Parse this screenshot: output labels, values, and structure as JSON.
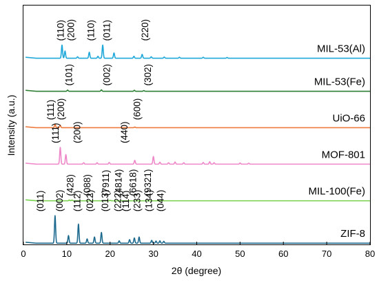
{
  "chart_data": {
    "type": "line",
    "title": "",
    "xlabel": "2θ (degree)",
    "ylabel": "Intensity (a.u.)",
    "xlim": [
      0,
      80
    ],
    "xticks": [
      0,
      10,
      20,
      30,
      40,
      50,
      60,
      70,
      80
    ],
    "y_tick_labels": "none",
    "grid": false,
    "legend": "none (series labelled directly at right of each trace)",
    "series": [
      {
        "name": "MIL-53(Al)",
        "color": "#1ea7d9",
        "baseline": 0.78,
        "peaks": [
          {
            "x": 8.9,
            "h": 0.055
          },
          {
            "x": 9.6,
            "h": 0.03
          },
          {
            "x": 12.5,
            "h": 0.006
          },
          {
            "x": 15.2,
            "h": 0.025
          },
          {
            "x": 17.2,
            "h": 0.008
          },
          {
            "x": 18.3,
            "h": 0.055
          },
          {
            "x": 20.9,
            "h": 0.022
          },
          {
            "x": 25.5,
            "h": 0.008
          },
          {
            "x": 27.4,
            "h": 0.016
          },
          {
            "x": 29.5,
            "h": 0.006
          },
          {
            "x": 32.5,
            "h": 0.005
          },
          {
            "x": 36.0,
            "h": 0.004
          },
          {
            "x": 41.5,
            "h": 0.004
          },
          {
            "x": 47.0,
            "h": 0.003
          }
        ],
        "peak_labels": [
          {
            "x": 8.5,
            "text": "(110)"
          },
          {
            "x": 10.9,
            "text": "(200)"
          },
          {
            "x": 15.5,
            "text": "(110)"
          },
          {
            "x": 19.2,
            "text": "(011)"
          },
          {
            "x": 28.0,
            "text": "(220)"
          }
        ]
      },
      {
        "name": "MIL-53(Fe)",
        "color": "#2d7f33",
        "baseline": 0.642,
        "peaks": [
          {
            "x": 10.2,
            "h": 0.005
          },
          {
            "x": 18.0,
            "h": 0.006
          },
          {
            "x": 25.6,
            "h": 0.004
          },
          {
            "x": 27.8,
            "h": 0.003
          }
        ],
        "peak_labels": [
          {
            "x": 10.4,
            "text": "(101)"
          },
          {
            "x": 19.2,
            "text": "(002)"
          },
          {
            "x": 28.6,
            "text": "(302)"
          }
        ]
      },
      {
        "name": "UiO-66",
        "color": "#ee7a3c",
        "baseline": 0.49,
        "peaks": [
          {
            "x": 7.3,
            "h": 0.015
          },
          {
            "x": 8.5,
            "h": 0.01
          },
          {
            "x": 25.7,
            "h": 0.003
          }
        ],
        "peak_labels": [
          {
            "x": 6.2,
            "text": "(111)"
          },
          {
            "x": 8.6,
            "text": "(200)"
          },
          {
            "x": 26.2,
            "text": "(600)"
          }
        ]
      },
      {
        "name": "MOF-801",
        "color": "#ee88c9",
        "baseline": 0.338,
        "peaks": [
          {
            "x": 8.5,
            "h": 0.07
          },
          {
            "x": 9.8,
            "h": 0.04
          },
          {
            "x": 13.9,
            "h": 0.006
          },
          {
            "x": 17.0,
            "h": 0.006
          },
          {
            "x": 19.8,
            "h": 0.007
          },
          {
            "x": 25.7,
            "h": 0.016
          },
          {
            "x": 30.0,
            "h": 0.032
          },
          {
            "x": 31.5,
            "h": 0.008
          },
          {
            "x": 33.5,
            "h": 0.006
          },
          {
            "x": 35.0,
            "h": 0.009
          },
          {
            "x": 37.0,
            "h": 0.006
          },
          {
            "x": 41.5,
            "h": 0.007
          },
          {
            "x": 43.0,
            "h": 0.01
          },
          {
            "x": 44.0,
            "h": 0.006
          },
          {
            "x": 50.0,
            "h": 0.005
          },
          {
            "x": 52.0,
            "h": 0.004
          }
        ],
        "peak_labels": [
          {
            "x": 7.3,
            "text": "(111)"
          },
          {
            "x": 12.3,
            "text": "(200)"
          },
          {
            "x": 23.2,
            "text": "(440)"
          }
        ]
      },
      {
        "name": "MIL-100(Fe)",
        "color": "#76d14a",
        "baseline": 0.185,
        "peaks": [
          {
            "x": 10.6,
            "h": 0.003
          },
          {
            "x": 11.2,
            "h": 0.003
          },
          {
            "x": 20.0,
            "h": 0.002
          }
        ],
        "peak_labels": [
          {
            "x": 10.7,
            "text": "(428)"
          },
          {
            "x": 14.6,
            "text": "(088)"
          },
          {
            "x": 18.9,
            "text": "(7911)"
          },
          {
            "x": 21.9,
            "text": "(4814)"
          },
          {
            "x": 25.2,
            "text": "(6618)"
          },
          {
            "x": 28.6,
            "text": "(9321)"
          }
        ]
      },
      {
        "name": "ZIF-8",
        "color": "#1d6a8e",
        "baseline": 0.008,
        "peaks": [
          {
            "x": 7.3,
            "h": 0.115
          },
          {
            "x": 10.4,
            "h": 0.032
          },
          {
            "x": 12.7,
            "h": 0.08
          },
          {
            "x": 14.7,
            "h": 0.018
          },
          {
            "x": 16.4,
            "h": 0.026
          },
          {
            "x": 18.0,
            "h": 0.045
          },
          {
            "x": 22.1,
            "h": 0.01
          },
          {
            "x": 24.5,
            "h": 0.015
          },
          {
            "x": 25.6,
            "h": 0.022
          },
          {
            "x": 26.7,
            "h": 0.026
          },
          {
            "x": 29.6,
            "h": 0.012
          },
          {
            "x": 30.6,
            "h": 0.009
          },
          {
            "x": 31.5,
            "h": 0.01
          },
          {
            "x": 32.4,
            "h": 0.008
          }
        ],
        "peak_labels": [
          {
            "x": 3.8,
            "text": "(011)"
          },
          {
            "x": 8.3,
            "text": "(002)"
          },
          {
            "x": 12.3,
            "text": "(112)"
          },
          {
            "x": 15.3,
            "text": "(022)"
          },
          {
            "x": 18.8,
            "text": "(013)"
          },
          {
            "x": 21.7,
            "text": "(222)"
          },
          {
            "x": 23.5,
            "text": "(114)"
          },
          {
            "x": 26.2,
            "text": "(233)"
          },
          {
            "x": 28.9,
            "text": "(134)"
          },
          {
            "x": 31.6,
            "text": "(044)"
          }
        ]
      }
    ]
  }
}
